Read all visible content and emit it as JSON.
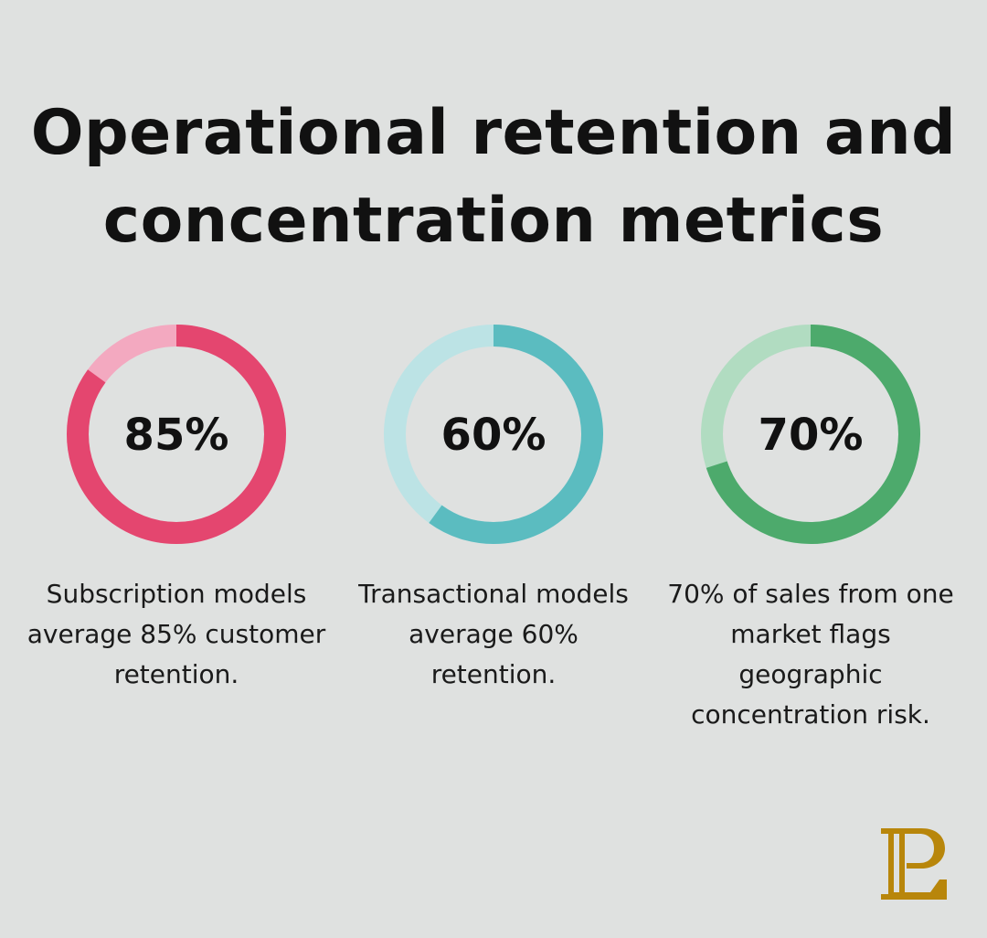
{
  "title": "Operational retention and concentration metrics",
  "chart_data": [
    {
      "type": "pie",
      "style": "donut",
      "value": 85,
      "label": "85%",
      "description": "Subscription models average 85% customer retention.",
      "colors": {
        "filled": "#e4466f",
        "remainder": "#f3a9c0"
      }
    },
    {
      "type": "pie",
      "style": "donut",
      "value": 60,
      "label": "60%",
      "description": "Transactional models average 60% retention.",
      "colors": {
        "filled": "#5bbcc0",
        "remainder": "#bce3e5"
      }
    },
    {
      "type": "pie",
      "style": "donut",
      "value": 70,
      "label": "70%",
      "description": "70% of sales from one market flags geographic concentration risk.",
      "colors": {
        "filled": "#4daa6c",
        "remainder": "#b1dcc1"
      }
    }
  ],
  "logo": {
    "text": "PL",
    "color": "#b8860b"
  }
}
